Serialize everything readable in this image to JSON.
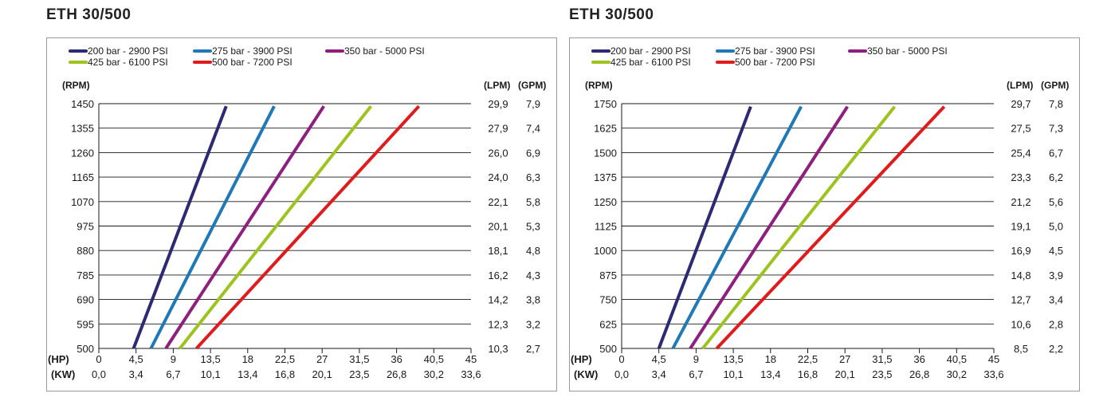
{
  "charts": [
    {
      "title": "ETH 30/500",
      "chart_data": {
        "type": "line",
        "legend": {
          "placement": "top-left",
          "entries": [
            "200 bar - 2900 PSI",
            "275 bar - 3900 PSI",
            "350 bar - 5000 PSI",
            "425 bar - 6100 PSI",
            "500 bar - 7200 PSI"
          ]
        },
        "left_axis_label": "(RPM)",
        "right_axis_labels": [
          "(LPM)",
          "(GPM)"
        ],
        "hp_label": "(HP)",
        "kw_label": "(KW)",
        "grid": true,
        "x_range": [
          0,
          45
        ],
        "y_range": [
          500,
          1450
        ],
        "rpm_ticks": [
          "1450",
          "1355",
          "1260",
          "1165",
          "1070",
          "975",
          "880",
          "785",
          "690",
          "595",
          "500"
        ],
        "lpm_ticks": [
          "29,9",
          "27,9",
          "26,0",
          "24,0",
          "22,1",
          "20,1",
          "18,1",
          "16,2",
          "14,2",
          "12,3",
          "10,3"
        ],
        "gpm_ticks": [
          "7,9",
          "7,4",
          "6,9",
          "6,3",
          "5,8",
          "5,3",
          "4,8",
          "4,3",
          "3,8",
          "3,2",
          "2,7"
        ],
        "hp_ticks": [
          "0",
          "4,5",
          "9",
          "13,5",
          "18",
          "22,5",
          "27",
          "31,5",
          "36",
          "40,5",
          "45"
        ],
        "kw_ticks": [
          "0,0",
          "3,4",
          "6,7",
          "10,1",
          "13,4",
          "16,8",
          "20,1",
          "23,5",
          "26,8",
          "30,2",
          "33,6"
        ],
        "series": [
          {
            "name": "200 bar - 2900 PSI",
            "color": "#2b2a72",
            "x": [
              4.2,
              15.4
            ],
            "y": [
              500,
              1440
            ]
          },
          {
            "name": "275 bar - 3900 PSI",
            "color": "#1f78b8",
            "x": [
              6.3,
              21.2
            ],
            "y": [
              500,
              1440
            ]
          },
          {
            "name": "350 bar - 5000 PSI",
            "color": "#8e1f7e",
            "x": [
              8.1,
              27.2
            ],
            "y": [
              500,
              1440
            ]
          },
          {
            "name": "425 bar - 6100 PSI",
            "color": "#9dc41e",
            "x": [
              9.8,
              32.9
            ],
            "y": [
              500,
              1440
            ]
          },
          {
            "name": "500 bar - 7200 PSI",
            "color": "#e01b1b",
            "x": [
              11.8,
              38.7
            ],
            "y": [
              500,
              1440
            ]
          }
        ]
      }
    },
    {
      "title": "ETH 30/500",
      "chart_data": {
        "type": "line",
        "legend": {
          "placement": "top-left",
          "entries": [
            "200 bar - 2900 PSI",
            "275 bar - 3900 PSI",
            "350 bar - 5000 PSI",
            "425 bar - 6100 PSI",
            "500 bar - 7200 PSI"
          ]
        },
        "left_axis_label": "(RPM)",
        "right_axis_labels": [
          "(LPM)",
          "(GPM)"
        ],
        "hp_label": "(HP)",
        "kw_label": "(KW)",
        "grid": true,
        "x_range": [
          0,
          45
        ],
        "y_range": [
          500,
          1750
        ],
        "rpm_ticks": [
          "1750",
          "1625",
          "1500",
          "1375",
          "1250",
          "1125",
          "1000",
          "875",
          "750",
          "625",
          "500"
        ],
        "lpm_ticks": [
          "29,7",
          "27,5",
          "25,4",
          "23,3",
          "21,2",
          "19,1",
          "16,9",
          "14,8",
          "12,7",
          "10,6",
          "8,5"
        ],
        "gpm_ticks": [
          "7,8",
          "7,3",
          "6,7",
          "6,2",
          "5,6",
          "5,0",
          "4,5",
          "3,9",
          "3,4",
          "2,8",
          "2,2"
        ],
        "hp_ticks": [
          "0",
          "4,5",
          "9",
          "13,5",
          "18",
          "22,5",
          "27",
          "31,5",
          "36",
          "40,5",
          "45"
        ],
        "kw_ticks": [
          "0,0",
          "3,4",
          "6,7",
          "10,1",
          "13,4",
          "16,8",
          "20,1",
          "23,5",
          "26,8",
          "30,2",
          "33,6"
        ],
        "series": [
          {
            "name": "200 bar - 2900 PSI",
            "color": "#2b2a72",
            "x": [
              4.5,
              15.6
            ],
            "y": [
              500,
              1735
            ]
          },
          {
            "name": "275 bar - 3900 PSI",
            "color": "#1f78b8",
            "x": [
              6.2,
              21.7
            ],
            "y": [
              500,
              1735
            ]
          },
          {
            "name": "350 bar - 5000 PSI",
            "color": "#8e1f7e",
            "x": [
              8.3,
              27.3
            ],
            "y": [
              500,
              1735
            ]
          },
          {
            "name": "425 bar - 6100 PSI",
            "color": "#9dc41e",
            "x": [
              9.8,
              33.0
            ],
            "y": [
              500,
              1735
            ]
          },
          {
            "name": "500 bar - 7200 PSI",
            "color": "#e01b1b",
            "x": [
              11.5,
              39.0
            ],
            "y": [
              500,
              1735
            ]
          }
        ]
      }
    }
  ]
}
